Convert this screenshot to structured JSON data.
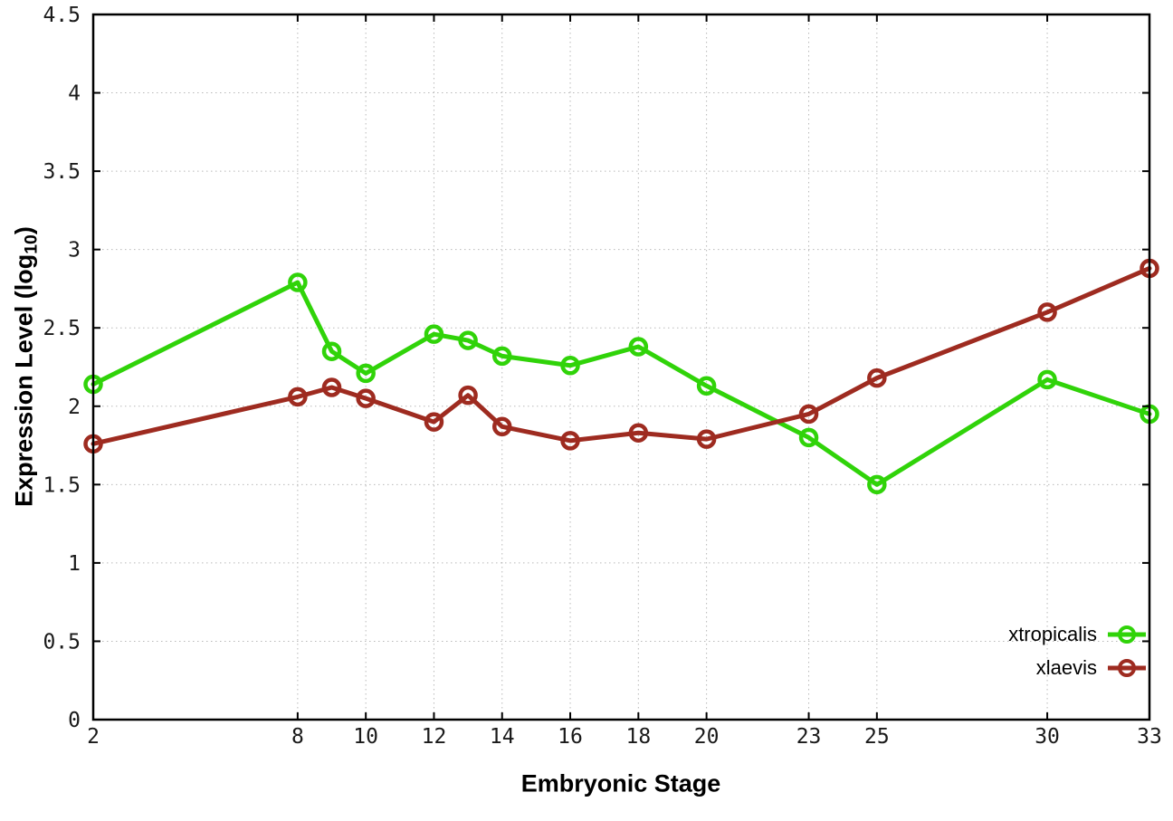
{
  "figure": {
    "background_color": "#ffffff",
    "border_color": "#000000",
    "grid_color": "#b9b9b9"
  },
  "chart_data": {
    "type": "line",
    "title": "",
    "xlabel": "Embryonic Stage",
    "ylabel": "Expression Level (log10)",
    "ylabel_parts": {
      "prefix": "Expression Level (log",
      "sub": "10",
      "suffix": ")"
    },
    "x": [
      2,
      8,
      9,
      10,
      12,
      13,
      14,
      16,
      18,
      20,
      23,
      25,
      30,
      33
    ],
    "series": [
      {
        "name": "xtropicalis",
        "color": "#30d309",
        "values": [
          2.14,
          2.79,
          2.35,
          2.21,
          2.46,
          2.42,
          2.32,
          2.26,
          2.38,
          2.13,
          1.8,
          1.5,
          2.17,
          1.95
        ]
      },
      {
        "name": "xlaevis",
        "color": "#9e2b20",
        "values": [
          1.76,
          2.06,
          2.12,
          2.05,
          1.9,
          2.07,
          1.87,
          1.78,
          1.83,
          1.79,
          1.95,
          2.18,
          2.6,
          2.88
        ]
      }
    ],
    "xlim": [
      2,
      33
    ],
    "ylim": [
      0,
      4.5
    ],
    "xticks": [
      2,
      8,
      10,
      12,
      14,
      16,
      18,
      20,
      23,
      25,
      30,
      33
    ],
    "xtick_labels": [
      "2",
      "8",
      "10",
      "12",
      "14",
      "16",
      "18",
      "20",
      "23",
      "25",
      "30",
      "33"
    ],
    "yticks": [
      0,
      0.5,
      1,
      1.5,
      2,
      2.5,
      3,
      3.5,
      4,
      4.5
    ],
    "ytick_labels": [
      "0",
      "0.5",
      "1",
      "1.5",
      "2",
      "2.5",
      "3",
      "3.5",
      "4",
      "4.5"
    ],
    "grid": true,
    "grid_style": "dotted",
    "legend_position": "bottom-right",
    "marker": "open-circle"
  }
}
